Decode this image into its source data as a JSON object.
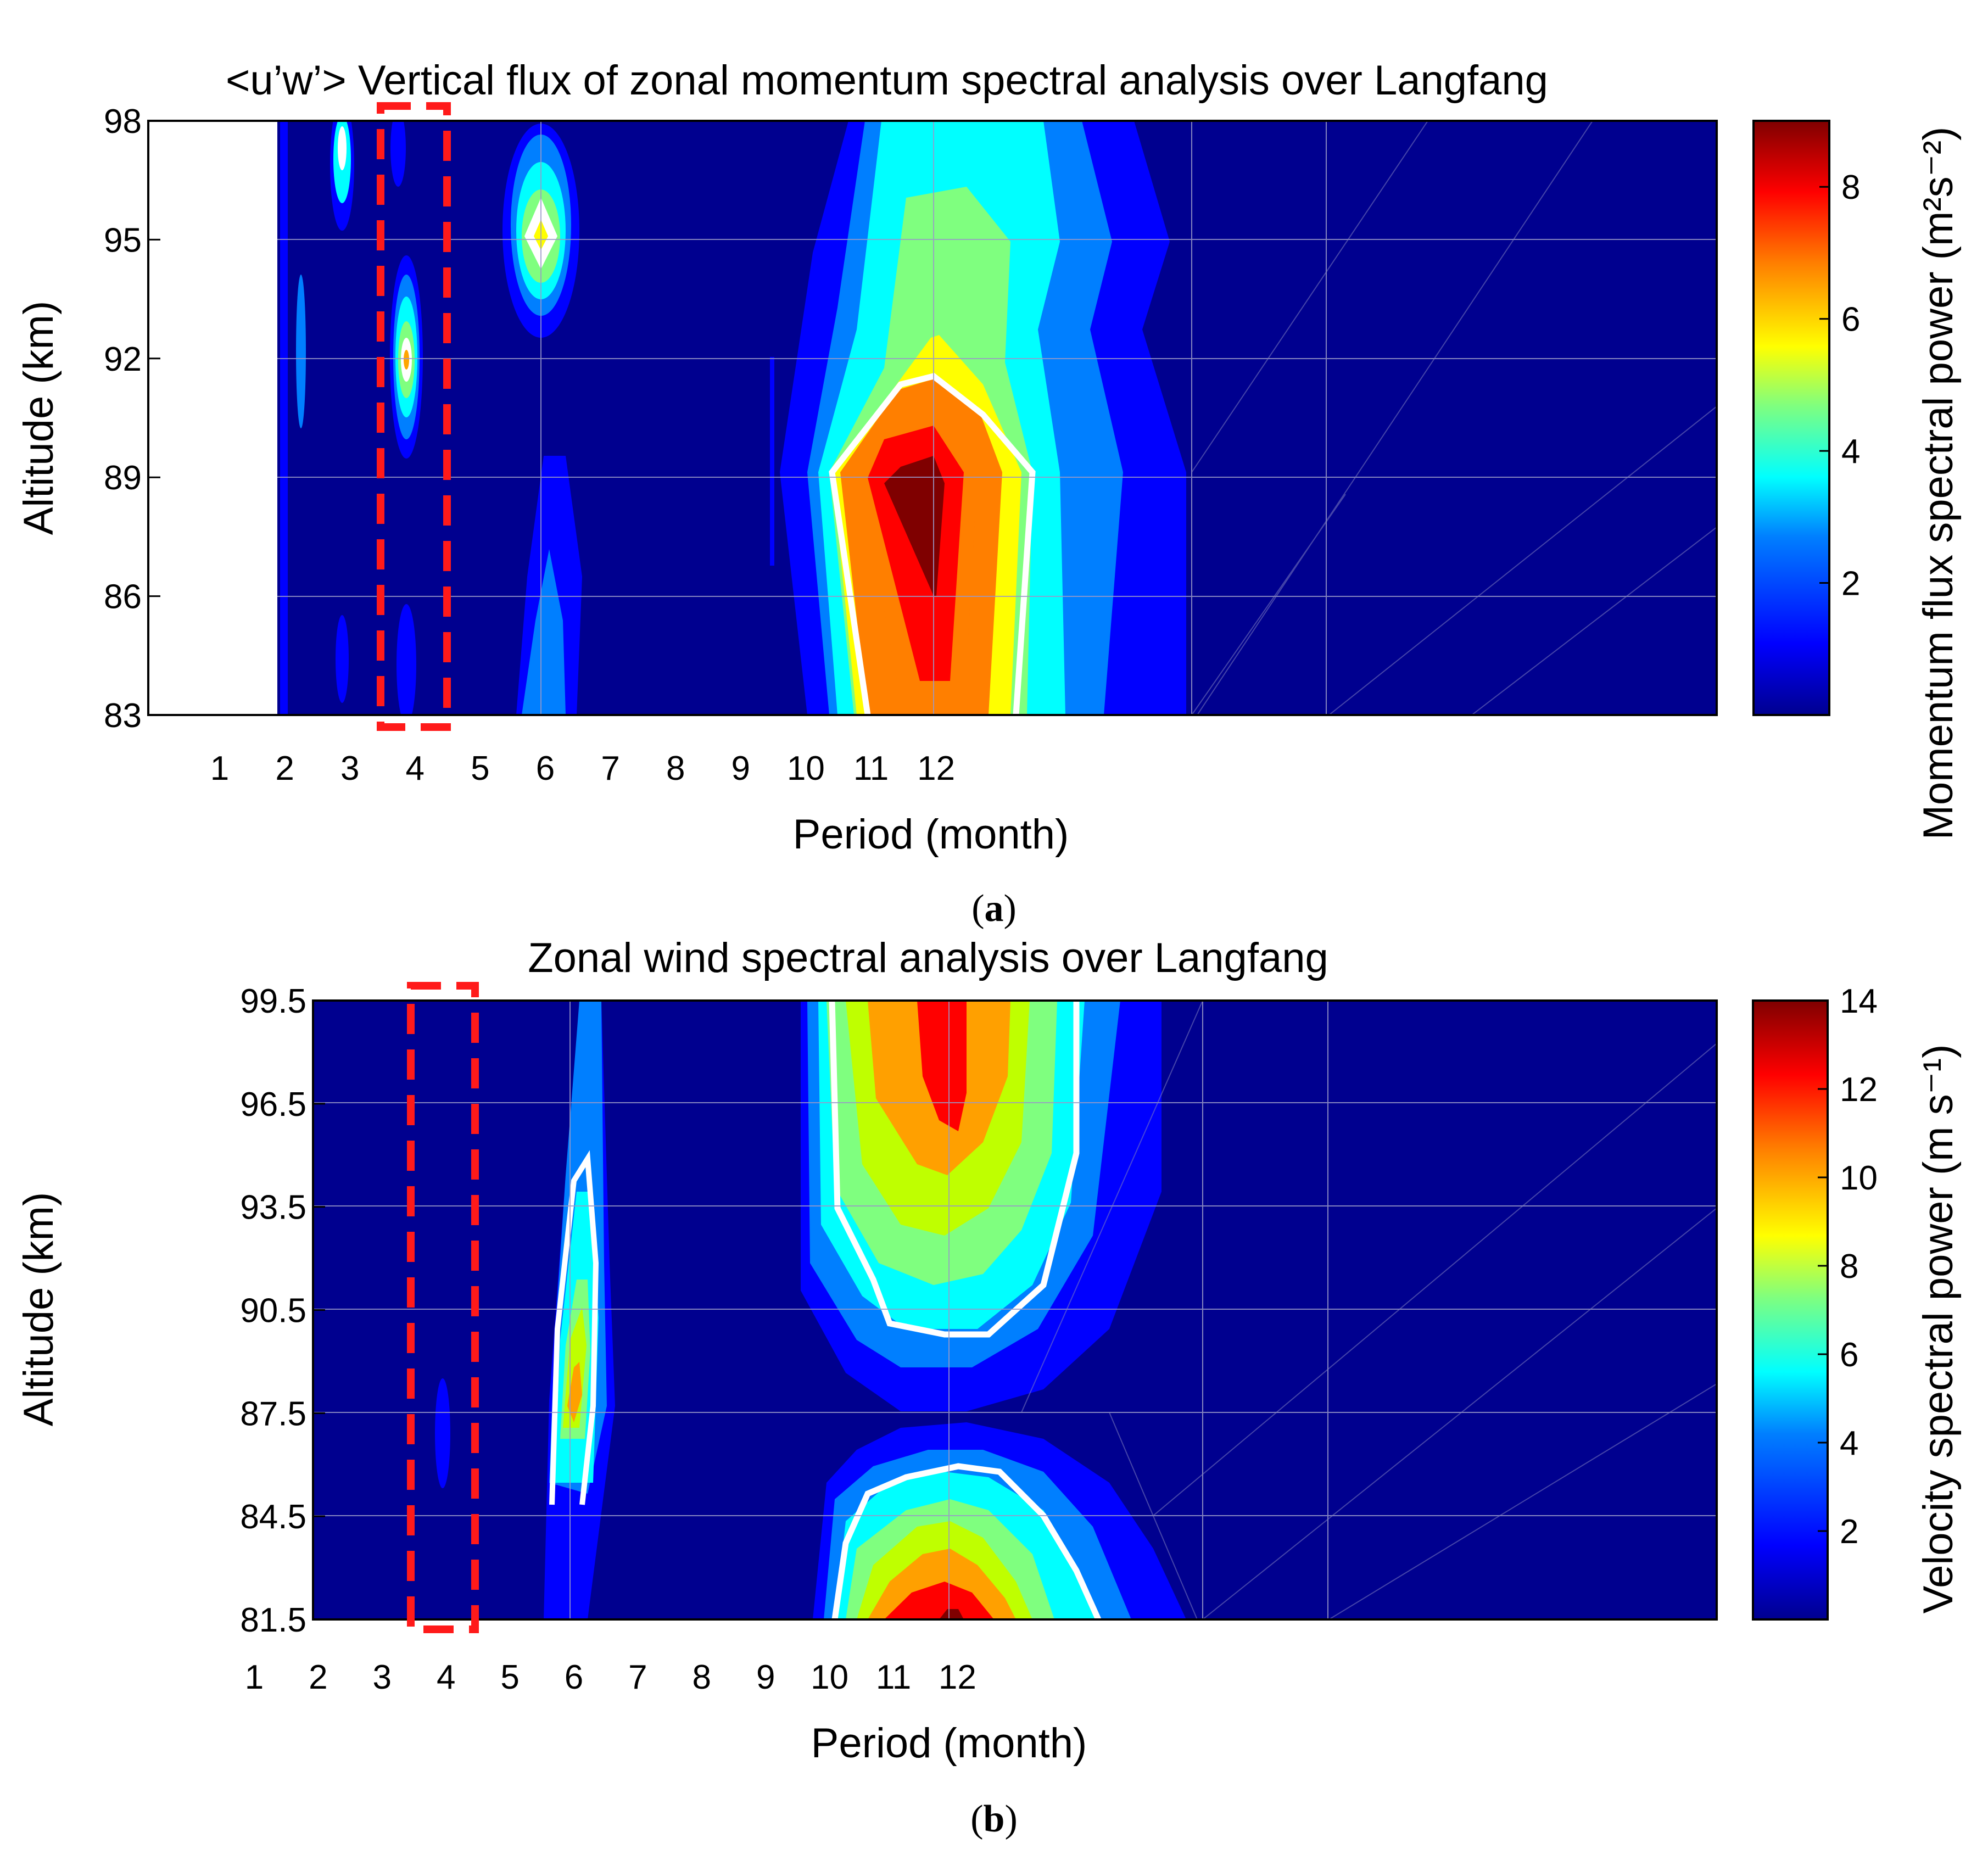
{
  "colors": {
    "background_field": "#00008f",
    "highlight_box": "#ff1a1a",
    "contour_line": "#ffffff",
    "grid": "#9a9ac8"
  },
  "colormap_jet": [
    "#00008f",
    "#0000ff",
    "#007fff",
    "#00ffff",
    "#7fff7f",
    "#ffff00",
    "#ff7f00",
    "#ff0000",
    "#7f0000"
  ],
  "panels": [
    {
      "id": "a",
      "caption_open": "(",
      "caption_letter": "a",
      "caption_close": ")",
      "chart_data": {
        "type": "heatmap",
        "title": "<u’w’> Vertical flux of zonal momentum spectral analysis over Langfang",
        "xlabel": "Period (month)",
        "ylabel": "Altitude (km)",
        "colorbar_label": "Momentum flux spectral power (m²s⁻²)",
        "x_ticks": [
          "1",
          "2",
          "3",
          "4",
          "5",
          "6",
          "7",
          "8",
          "9",
          "10",
          "11",
          "12"
        ],
        "y_ticks": [
          "98",
          "95",
          "92",
          "89",
          "86",
          "83"
        ],
        "ylim": [
          83,
          98
        ],
        "clim": [
          0,
          9
        ],
        "colorbar_ticks": [
          "8",
          "6",
          "4",
          "2"
        ],
        "highlight_period": 4,
        "white_contour_level": 5,
        "peaks": [
          {
            "period": 12,
            "altitude": 87.5,
            "power": 9.0
          },
          {
            "period": 6,
            "altitude": 95,
            "power": 5.5
          },
          {
            "period": 4,
            "altitude": 92,
            "power": 5.0
          },
          {
            "period": 3,
            "altitude": 97.5,
            "power": 4.0
          }
        ]
      }
    },
    {
      "id": "b",
      "caption_open": "(",
      "caption_letter": "b",
      "caption_close": ")",
      "chart_data": {
        "type": "heatmap",
        "title": "Zonal wind spectral analysis over Langfang",
        "xlabel": "Period (month)",
        "ylabel": "Altitude (km)",
        "colorbar_label": "Velocity spectral power (m s⁻¹)",
        "x_ticks": [
          "1",
          "2",
          "3",
          "4",
          "5",
          "6",
          "7",
          "8",
          "9",
          "10",
          "11",
          "12"
        ],
        "y_ticks": [
          "99.5",
          "96.5",
          "93.5",
          "90.5",
          "87.5",
          "84.5",
          "81.5"
        ],
        "ylim": [
          81.5,
          99.5
        ],
        "clim": [
          0,
          14
        ],
        "colorbar_ticks": [
          "14",
          "12",
          "10",
          "8",
          "6",
          "4",
          "2"
        ],
        "highlight_period": 4,
        "white_contour_level": 7,
        "peaks": [
          {
            "period": 12,
            "altitude": 98.5,
            "power": 12.5
          },
          {
            "period": 12,
            "altitude": 81.5,
            "power": 14.0
          },
          {
            "period": 6,
            "altitude": 87.5,
            "power": 11.0
          },
          {
            "period": 4,
            "altitude": 87.5,
            "power": 3.0
          }
        ]
      }
    }
  ]
}
